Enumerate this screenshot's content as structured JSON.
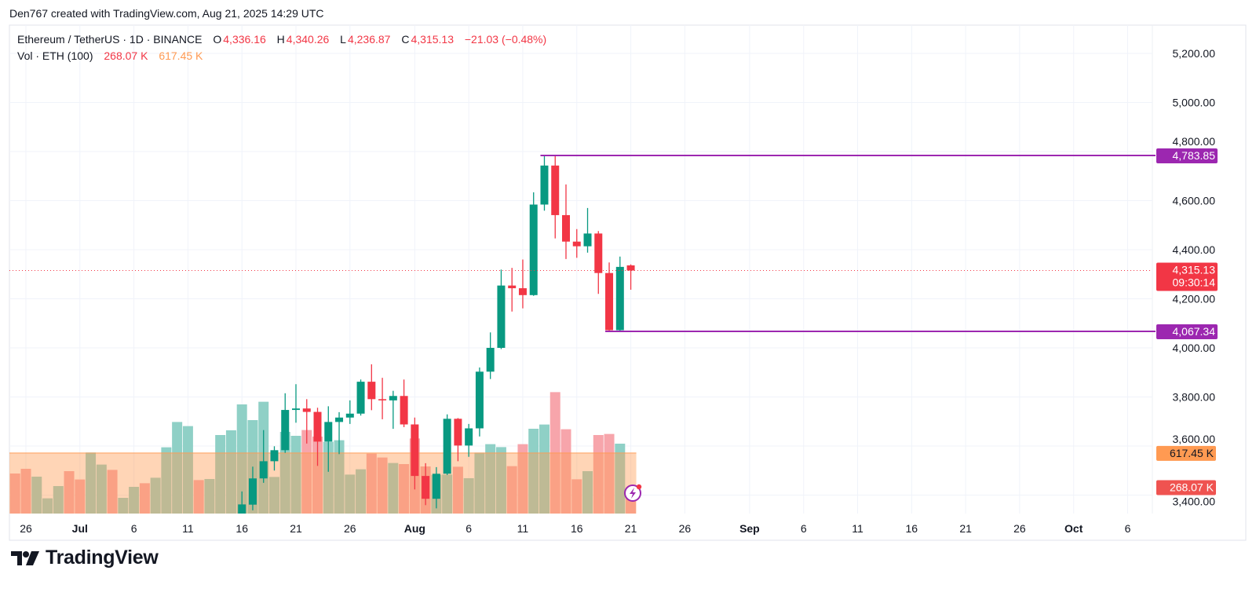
{
  "header": {
    "credit": "Den767 created with TradingView.com, Aug 21, 2025 14:29 UTC"
  },
  "legend": {
    "symbol": "Ethereum / TetherUS · 1D · BINANCE",
    "o_label": "O",
    "o": "4,336.16",
    "h_label": "H",
    "h": "4,340.26",
    "l_label": "L",
    "l": "4,236.87",
    "c_label": "C",
    "c": "4,315.13",
    "change": "−21.03 (−0.48%)",
    "vol_label": "Vol · ETH (100)",
    "vol": "268.07 K",
    "vol_ma": "617.45 K"
  },
  "branding": {
    "logo_text": "TradingView"
  },
  "colors": {
    "up": "#089981",
    "down": "#f23645",
    "up_volume": "#8fd0c6",
    "down_volume": "#f7a5ab",
    "volume_ma": "#ff9a52",
    "levels": "#9c27b0",
    "last_price": "#f23645"
  },
  "chart_data": {
    "type": "candlestick",
    "symbol": "ETHUSDT",
    "interval": "1D",
    "ylim": [
      3366,
      5290
    ],
    "y_ticks": [
      "5,200.00",
      "5,000.00",
      "4,800.00",
      "4,600.00",
      "4,400.00",
      "4,200.00",
      "4,000.00",
      "3,800.00",
      "3,600.00",
      "3,400.00"
    ],
    "y_tick_values": [
      5200,
      5000,
      4800,
      4600,
      4400,
      4200,
      4000,
      3800,
      3600,
      3400
    ],
    "x_ticks": [
      {
        "label": "26",
        "date": "2025-06-26",
        "bold": false
      },
      {
        "label": "Jul",
        "date": "2025-07-01",
        "bold": true
      },
      {
        "label": "6",
        "date": "2025-07-06",
        "bold": false
      },
      {
        "label": "11",
        "date": "2025-07-11",
        "bold": false
      },
      {
        "label": "16",
        "date": "2025-07-16",
        "bold": false
      },
      {
        "label": "21",
        "date": "2025-07-21",
        "bold": false
      },
      {
        "label": "26",
        "date": "2025-07-26",
        "bold": false
      },
      {
        "label": "Aug",
        "date": "2025-08-01",
        "bold": true
      },
      {
        "label": "6",
        "date": "2025-08-06",
        "bold": false
      },
      {
        "label": "11",
        "date": "2025-08-11",
        "bold": false
      },
      {
        "label": "16",
        "date": "2025-08-16",
        "bold": false
      },
      {
        "label": "21",
        "date": "2025-08-21",
        "bold": false
      },
      {
        "label": "26",
        "date": "2025-08-26",
        "bold": false
      },
      {
        "label": "Sep",
        "date": "2025-09-01",
        "bold": true
      },
      {
        "label": "6",
        "date": "2025-09-06",
        "bold": false
      },
      {
        "label": "11",
        "date": "2025-09-11",
        "bold": false
      },
      {
        "label": "16",
        "date": "2025-09-16",
        "bold": false
      },
      {
        "label": "21",
        "date": "2025-09-21",
        "bold": false
      },
      {
        "label": "26",
        "date": "2025-09-26",
        "bold": false
      },
      {
        "label": "Oct",
        "date": "2025-10-01",
        "bold": true
      },
      {
        "label": "6",
        "date": "2025-10-06",
        "bold": false
      }
    ],
    "candles": [
      {
        "d": "2025-07-16",
        "o": 3300,
        "h": 3415,
        "l": 3290,
        "c": 3362
      },
      {
        "d": "2025-07-17",
        "o": 3361,
        "h": 3516,
        "l": 3338,
        "c": 3468
      },
      {
        "d": "2025-07-18",
        "o": 3468,
        "h": 3665,
        "l": 3450,
        "c": 3538
      },
      {
        "d": "2025-07-19",
        "o": 3538,
        "h": 3599,
        "l": 3500,
        "c": 3583
      },
      {
        "d": "2025-07-20",
        "o": 3583,
        "h": 3815,
        "l": 3572,
        "c": 3747
      },
      {
        "d": "2025-07-21",
        "o": 3747,
        "h": 3852,
        "l": 3695,
        "c": 3753
      },
      {
        "d": "2025-07-22",
        "o": 3753,
        "h": 3791,
        "l": 3610,
        "c": 3739
      },
      {
        "d": "2025-07-23",
        "o": 3739,
        "h": 3756,
        "l": 3519,
        "c": 3618
      },
      {
        "d": "2025-07-24",
        "o": 3618,
        "h": 3762,
        "l": 3495,
        "c": 3698
      },
      {
        "d": "2025-07-25",
        "o": 3698,
        "h": 3738,
        "l": 3567,
        "c": 3716
      },
      {
        "d": "2025-07-26",
        "o": 3716,
        "h": 3786,
        "l": 3690,
        "c": 3732
      },
      {
        "d": "2025-07-27",
        "o": 3732,
        "h": 3871,
        "l": 3724,
        "c": 3862
      },
      {
        "d": "2025-07-28",
        "o": 3862,
        "h": 3933,
        "l": 3746,
        "c": 3791
      },
      {
        "d": "2025-07-29",
        "o": 3791,
        "h": 3878,
        "l": 3709,
        "c": 3786
      },
      {
        "d": "2025-07-30",
        "o": 3786,
        "h": 3825,
        "l": 3670,
        "c": 3804
      },
      {
        "d": "2025-07-31",
        "o": 3804,
        "h": 3871,
        "l": 3677,
        "c": 3688
      },
      {
        "d": "2025-08-01",
        "o": 3688,
        "h": 3716,
        "l": 3423,
        "c": 3478
      },
      {
        "d": "2025-08-02",
        "o": 3478,
        "h": 3530,
        "l": 3359,
        "c": 3385
      },
      {
        "d": "2025-08-03",
        "o": 3385,
        "h": 3514,
        "l": 3346,
        "c": 3487
      },
      {
        "d": "2025-08-04",
        "o": 3487,
        "h": 3729,
        "l": 3482,
        "c": 3711
      },
      {
        "d": "2025-08-05",
        "o": 3711,
        "h": 3714,
        "l": 3538,
        "c": 3602
      },
      {
        "d": "2025-08-06",
        "o": 3602,
        "h": 3690,
        "l": 3556,
        "c": 3672
      },
      {
        "d": "2025-08-07",
        "o": 3672,
        "h": 3920,
        "l": 3639,
        "c": 3903
      },
      {
        "d": "2025-08-08",
        "o": 3903,
        "h": 4063,
        "l": 3873,
        "c": 4000
      },
      {
        "d": "2025-08-09",
        "o": 4000,
        "h": 4319,
        "l": 3995,
        "c": 4254
      },
      {
        "d": "2025-08-10",
        "o": 4254,
        "h": 4326,
        "l": 4148,
        "c": 4243
      },
      {
        "d": "2025-08-11",
        "o": 4243,
        "h": 4360,
        "l": 4161,
        "c": 4215
      },
      {
        "d": "2025-08-12",
        "o": 4215,
        "h": 4634,
        "l": 4212,
        "c": 4584
      },
      {
        "d": "2025-08-13",
        "o": 4584,
        "h": 4783.85,
        "l": 4559,
        "c": 4743
      },
      {
        "d": "2025-08-14",
        "o": 4743,
        "h": 4783,
        "l": 4446,
        "c": 4541
      },
      {
        "d": "2025-08-15",
        "o": 4541,
        "h": 4666,
        "l": 4362,
        "c": 4433
      },
      {
        "d": "2025-08-16",
        "o": 4433,
        "h": 4484,
        "l": 4367,
        "c": 4414
      },
      {
        "d": "2025-08-17",
        "o": 4414,
        "h": 4570,
        "l": 4388,
        "c": 4466
      },
      {
        "d": "2025-08-18",
        "o": 4466,
        "h": 4476,
        "l": 4220,
        "c": 4305
      },
      {
        "d": "2025-08-19",
        "o": 4305,
        "h": 4348,
        "l": 4067.34,
        "c": 4072
      },
      {
        "d": "2025-08-20",
        "o": 4072,
        "h": 4372,
        "l": 4070,
        "c": 4330
      },
      {
        "d": "2025-08-21",
        "o": 4336.16,
        "h": 4340.26,
        "l": 4236.87,
        "c": 4315.13
      }
    ],
    "volume_unit": "K ETH",
    "volumes": [
      {
        "d": "2025-06-25",
        "v": 408,
        "dir": "down"
      },
      {
        "d": "2025-06-26",
        "v": 456,
        "dir": "down"
      },
      {
        "d": "2025-06-27",
        "v": 376,
        "dir": "up"
      },
      {
        "d": "2025-06-28",
        "v": 155,
        "dir": "up"
      },
      {
        "d": "2025-06-29",
        "v": 280,
        "dir": "up"
      },
      {
        "d": "2025-06-30",
        "v": 432,
        "dir": "down"
      },
      {
        "d": "2025-07-01",
        "v": 347,
        "dir": "down"
      },
      {
        "d": "2025-07-02",
        "v": 621,
        "dir": "up"
      },
      {
        "d": "2025-07-03",
        "v": 499,
        "dir": "up"
      },
      {
        "d": "2025-07-04",
        "v": 445,
        "dir": "down"
      },
      {
        "d": "2025-07-05",
        "v": 160,
        "dir": "up"
      },
      {
        "d": "2025-07-06",
        "v": 272,
        "dir": "up"
      },
      {
        "d": "2025-07-07",
        "v": 309,
        "dir": "down"
      },
      {
        "d": "2025-07-08",
        "v": 365,
        "dir": "up"
      },
      {
        "d": "2025-07-09",
        "v": 675,
        "dir": "up"
      },
      {
        "d": "2025-07-10",
        "v": 933,
        "dir": "up"
      },
      {
        "d": "2025-07-11",
        "v": 891,
        "dir": "up"
      },
      {
        "d": "2025-07-12",
        "v": 341,
        "dir": "down"
      },
      {
        "d": "2025-07-13",
        "v": 352,
        "dir": "up"
      },
      {
        "d": "2025-07-14",
        "v": 800,
        "dir": "up"
      },
      {
        "d": "2025-07-15",
        "v": 848,
        "dir": "up"
      },
      {
        "d": "2025-07-16",
        "v": 1112,
        "dir": "up"
      },
      {
        "d": "2025-07-17",
        "v": 952,
        "dir": "up"
      },
      {
        "d": "2025-07-18",
        "v": 1139,
        "dir": "up"
      },
      {
        "d": "2025-07-19",
        "v": 373,
        "dir": "up"
      },
      {
        "d": "2025-07-20",
        "v": 832,
        "dir": "up"
      },
      {
        "d": "2025-07-21",
        "v": 792,
        "dir": "up"
      },
      {
        "d": "2025-07-22",
        "v": 851,
        "dir": "down"
      },
      {
        "d": "2025-07-23",
        "v": 784,
        "dir": "down"
      },
      {
        "d": "2025-07-24",
        "v": 731,
        "dir": "up"
      },
      {
        "d": "2025-07-25",
        "v": 747,
        "dir": "up"
      },
      {
        "d": "2025-07-26",
        "v": 397,
        "dir": "up"
      },
      {
        "d": "2025-07-27",
        "v": 451,
        "dir": "up"
      },
      {
        "d": "2025-07-28",
        "v": 611,
        "dir": "down"
      },
      {
        "d": "2025-07-29",
        "v": 571,
        "dir": "down"
      },
      {
        "d": "2025-07-30",
        "v": 515,
        "dir": "up"
      },
      {
        "d": "2025-07-31",
        "v": 504,
        "dir": "down"
      },
      {
        "d": "2025-08-01",
        "v": 765,
        "dir": "down"
      },
      {
        "d": "2025-08-02",
        "v": 480,
        "dir": "down"
      },
      {
        "d": "2025-08-03",
        "v": 395,
        "dir": "up"
      },
      {
        "d": "2025-08-04",
        "v": 397,
        "dir": "up"
      },
      {
        "d": "2025-08-05",
        "v": 477,
        "dir": "down"
      },
      {
        "d": "2025-08-06",
        "v": 360,
        "dir": "up"
      },
      {
        "d": "2025-08-07",
        "v": 619,
        "dir": "up"
      },
      {
        "d": "2025-08-08",
        "v": 707,
        "dir": "up"
      },
      {
        "d": "2025-08-09",
        "v": 677,
        "dir": "up"
      },
      {
        "d": "2025-08-10",
        "v": 483,
        "dir": "down"
      },
      {
        "d": "2025-08-11",
        "v": 707,
        "dir": "down"
      },
      {
        "d": "2025-08-12",
        "v": 864,
        "dir": "up"
      },
      {
        "d": "2025-08-13",
        "v": 907,
        "dir": "up"
      },
      {
        "d": "2025-08-14",
        "v": 1237,
        "dir": "down"
      },
      {
        "d": "2025-08-15",
        "v": 859,
        "dir": "down"
      },
      {
        "d": "2025-08-16",
        "v": 349,
        "dir": "down"
      },
      {
        "d": "2025-08-17",
        "v": 432,
        "dir": "up"
      },
      {
        "d": "2025-08-18",
        "v": 800,
        "dir": "down"
      },
      {
        "d": "2025-08-19",
        "v": 811,
        "dir": "down"
      },
      {
        "d": "2025-08-20",
        "v": 712,
        "dir": "up"
      },
      {
        "d": "2025-08-21",
        "v": 268.07,
        "dir": "down"
      }
    ],
    "volume_ma_value": 617.45,
    "levels": [
      {
        "label": "4,783.85",
        "price": 4783.85,
        "from": "2025-08-13"
      },
      {
        "label": "4,067.34",
        "price": 4067.34,
        "from": "2025-08-19"
      }
    ],
    "last_price": {
      "label": "4,315.13",
      "price": 4315.13,
      "countdown": "09:30:14"
    },
    "volume_labels": [
      {
        "label": "617.45 K",
        "value": 617.45,
        "color": "#ff9a52",
        "text_color": "#131722"
      },
      {
        "label": "268.07 K",
        "value": 268.07,
        "color": "#ef5350",
        "text_color": "#ffffff"
      }
    ]
  }
}
